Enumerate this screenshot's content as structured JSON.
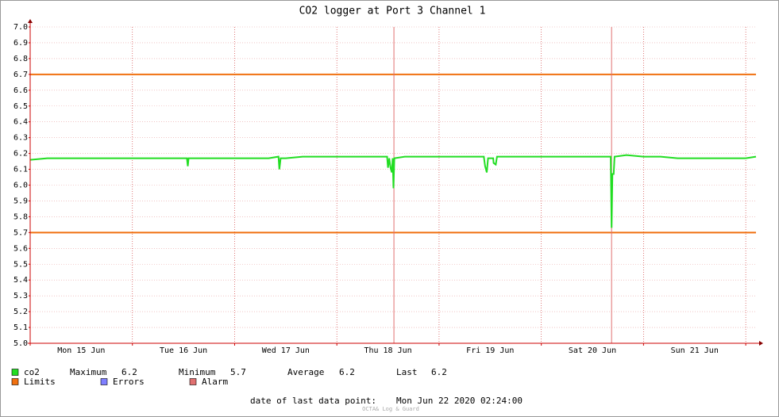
{
  "chart_data": {
    "type": "line",
    "title": "CO2 logger at Port 3 Channel 1",
    "x": [
      0,
      4,
      8,
      12,
      16,
      20,
      24,
      28,
      32,
      36.8,
      37,
      37.2,
      40,
      44,
      48,
      52,
      56,
      58.3,
      58.5,
      58.8,
      60,
      64,
      68,
      72,
      76,
      80,
      83.8,
      84,
      84.3,
      84.6,
      84.9,
      85.1,
      85.3,
      85.5,
      88,
      92,
      96,
      100,
      104,
      106.5,
      106.8,
      107.2,
      107.5,
      108.7,
      108.8,
      109.3,
      109.6,
      112,
      116,
      120,
      124,
      128,
      132,
      136.3,
      136.5,
      136.7,
      137,
      137.2,
      140,
      144,
      148,
      152,
      156,
      160,
      164,
      168,
      170.4
    ],
    "series": [
      {
        "name": "co2",
        "color": "#22dd22",
        "values": [
          6.16,
          6.17,
          6.17,
          6.17,
          6.17,
          6.17,
          6.17,
          6.17,
          6.17,
          6.17,
          6.12,
          6.17,
          6.17,
          6.17,
          6.17,
          6.17,
          6.17,
          6.18,
          6.1,
          6.17,
          6.17,
          6.18,
          6.18,
          6.18,
          6.18,
          6.18,
          6.18,
          6.11,
          6.17,
          6.11,
          6.08,
          6.17,
          5.98,
          6.17,
          6.18,
          6.18,
          6.18,
          6.18,
          6.18,
          6.18,
          6.12,
          6.08,
          6.17,
          6.17,
          6.14,
          6.13,
          6.18,
          6.18,
          6.18,
          6.18,
          6.18,
          6.18,
          6.18,
          6.18,
          5.73,
          6.07,
          6.07,
          6.18,
          6.19,
          6.18,
          6.18,
          6.17,
          6.17,
          6.17,
          6.17,
          6.17,
          6.18
        ]
      }
    ],
    "limits": {
      "name": "Limits",
      "color": "#f07010",
      "values": [
        6.7,
        5.7
      ]
    },
    "errors": {
      "name": "Errors",
      "color": "#7f7fff"
    },
    "alarms": {
      "name": "Alarm",
      "color": "#e07070",
      "x": [
        85.4,
        136.5
      ]
    },
    "xlim": [
      0,
      170.4
    ],
    "xticks": [
      {
        "value": 12,
        "label": "Mon 15 Jun"
      },
      {
        "value": 36,
        "label": "Tue 16 Jun"
      },
      {
        "value": 60,
        "label": "Wed 17 Jun"
      },
      {
        "value": 84,
        "label": "Thu 18 Jun"
      },
      {
        "value": 108,
        "label": "Fri 19 Jun"
      },
      {
        "value": 132,
        "label": "Sat 20 Jun"
      },
      {
        "value": 156,
        "label": "Sun 21 Jun"
      }
    ],
    "xgrid_lines": [
      24,
      48,
      72,
      96,
      120,
      144,
      168
    ],
    "ylim": [
      5,
      7
    ],
    "yticks": [
      {
        "value": 5,
        "label": "5.0"
      },
      5.1,
      5.2,
      5.3,
      5.4,
      5.5,
      5.6,
      5.7,
      5.8,
      5.9,
      {
        "value": 6,
        "label": "6.0"
      },
      6.1,
      6.2,
      6.3,
      6.4,
      6.5,
      6.6,
      6.7,
      6.8,
      6.9,
      {
        "value": 7,
        "label": "7.0"
      }
    ],
    "grid": true,
    "stats": [
      {
        "label": "Maximum",
        "value": 6.2
      },
      {
        "label": "Minimum",
        "value": 5.7
      },
      {
        "label": "Average",
        "value": 6.2
      },
      {
        "label": "Last",
        "value": 6.2
      }
    ],
    "footer_label": "date of last data point:",
    "footer_value": "Mon Jun 22 2020 02:24:00",
    "watermark": "OCTA& Log & Guard"
  }
}
